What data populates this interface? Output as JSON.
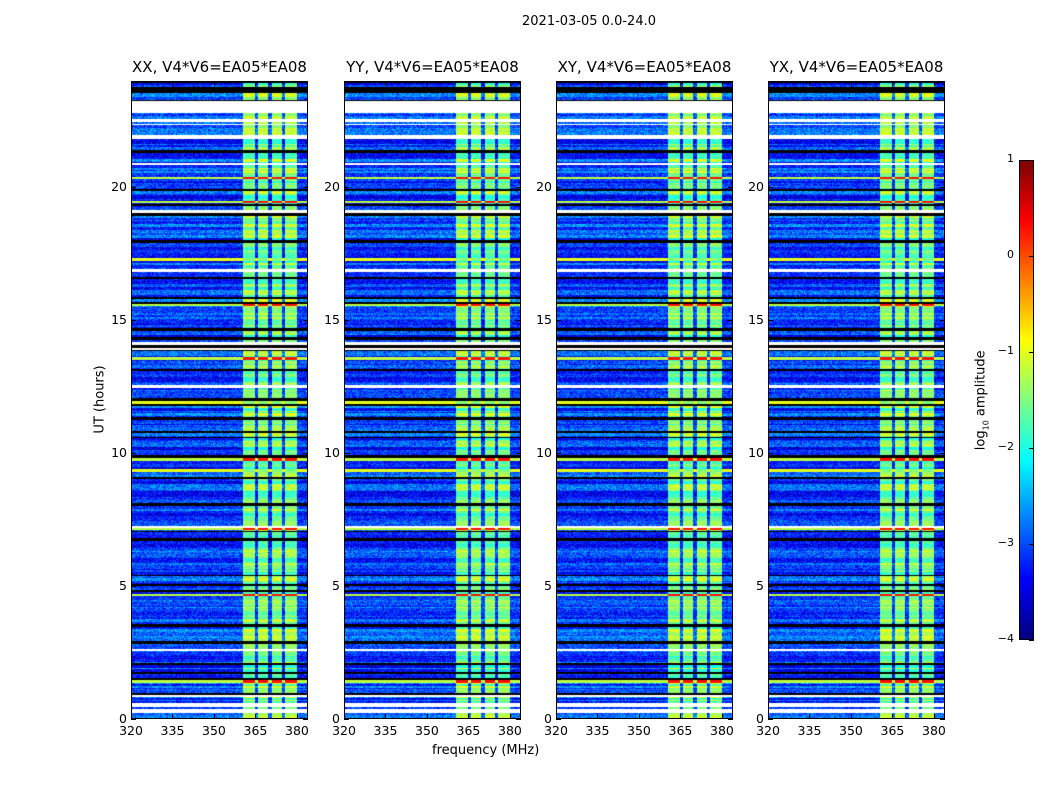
{
  "chart_data": {
    "type": "heatmap",
    "suptitle": "2021-03-05 0.0-24.0",
    "xlabel": "frequency (MHz)",
    "ylabel": "UT (hours)",
    "xlim": [
      320,
      384
    ],
    "ylim": [
      0,
      24
    ],
    "xticks": [
      "320",
      "335",
      "350",
      "365",
      "380"
    ],
    "xtick_values": [
      320,
      335,
      350,
      365,
      380
    ],
    "yticks": [
      "0",
      "5",
      "10",
      "15",
      "20"
    ],
    "ytick_values": [
      0,
      5,
      10,
      15,
      20
    ],
    "panels": [
      {
        "title": "XX, V4*V6=EA05*EA08"
      },
      {
        "title": "YY, V4*V6=EA05*EA08"
      },
      {
        "title": "XY, V4*V6=EA05*EA08"
      },
      {
        "title": "YX, V4*V6=EA05*EA08"
      }
    ],
    "colorbar": {
      "label": "log10 amplitude",
      "label_main": "log",
      "label_sub": "10",
      "label_rest": " amplitude",
      "colormap": "jet",
      "range": [
        -4,
        1
      ],
      "ticks": [
        "1",
        "0",
        "−1",
        "−2",
        "−3",
        "−4"
      ],
      "tick_values": [
        1,
        0,
        -1,
        -2,
        -3,
        -4
      ]
    },
    "features": {
      "background_log_amp": -3.2,
      "bright_band_mhz": [
        360.5,
        380.5
      ],
      "bright_band_log_amp": -1.6,
      "band_gaps_mhz": [
        365.5,
        370.5,
        375.5
      ],
      "flagged_white_hours": [
        [
          0.25,
          0.4
        ],
        [
          0.5,
          0.65
        ],
        [
          0.85,
          0.95
        ],
        [
          21.85,
          22.0
        ],
        [
          22.85,
          23.3
        ],
        [
          22.5,
          22.6
        ],
        [
          13.9,
          14.0
        ],
        [
          12.5,
          12.6
        ]
      ],
      "bright_rfi_hours": [
        1.45,
        4.7,
        7.2,
        9.8,
        13.6,
        15.6,
        20.4,
        19.5
      ]
    }
  }
}
